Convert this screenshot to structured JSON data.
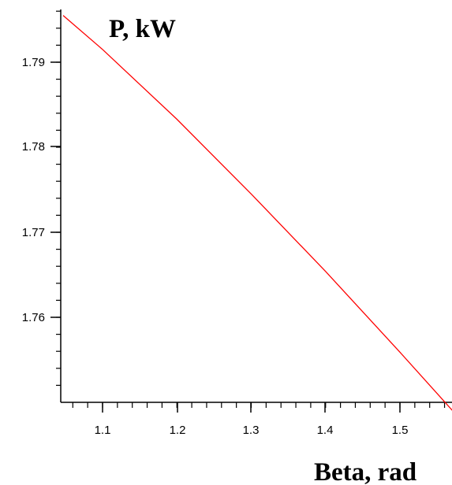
{
  "chart_data": {
    "type": "line",
    "ylabel": "P, kW",
    "xlabel": "Beta, rad",
    "xlim": [
      1.047,
      1.571
    ],
    "ylim": [
      1.7508,
      1.7963
    ],
    "x_ticks": [
      1.1,
      1.2,
      1.3,
      1.4,
      1.5
    ],
    "x_tick_labels": [
      "1.1",
      "1.2",
      "1.3",
      "1.4",
      "1.5"
    ],
    "y_ticks": [
      1.76,
      1.77,
      1.78,
      1.79
    ],
    "y_tick_labels": [
      "1.76",
      "1.77",
      "1.78",
      "1.79"
    ],
    "grid": false,
    "series": [
      {
        "color": "#ff0000",
        "x": [
          1.047,
          1.1,
          1.2,
          1.3,
          1.4,
          1.5,
          1.571
        ],
        "y": [
          1.7955,
          1.7915,
          1.7833,
          1.7745,
          1.7654,
          1.7559,
          1.749
        ]
      }
    ]
  }
}
